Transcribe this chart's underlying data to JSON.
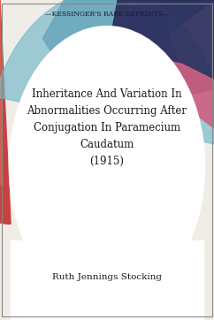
{
  "header_text": "—KESSINGER'S RARE REPRINTS—",
  "title_lines": [
    "Inheritance And Variation In",
    "Abnormalities Occurring After",
    "Conjugation In Paramecium",
    "Caudatum",
    "(1915)"
  ],
  "author": "Ruth Jennings Stocking",
  "bg_color": "#f0ede6",
  "header_color": "#1a1a2e",
  "title_color": "#1a1a1a",
  "author_color": "#1a1a1a",
  "header_fontsize": 5.5,
  "title_fontsize": 8.5,
  "author_fontsize": 7.5,
  "swirl_colors": {
    "red": "#c94040",
    "coral": "#d9604a",
    "teal": "#4a9aaa",
    "blue": "#3a6a9a",
    "pink": "#d06080",
    "purple": "#4a3a7a",
    "navy": "#2a2a5a",
    "light_teal": "#7abcca"
  }
}
